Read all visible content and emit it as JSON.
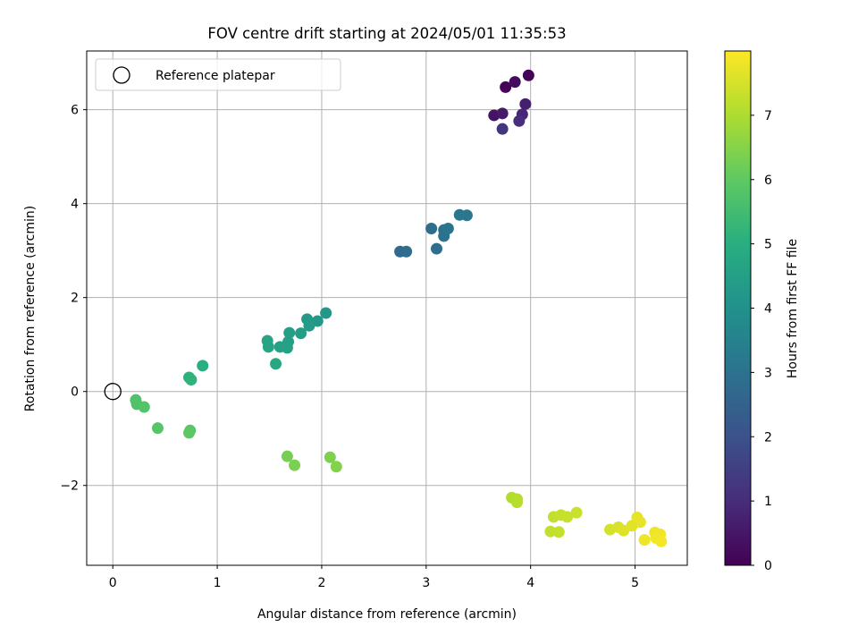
{
  "chart_data": {
    "type": "scatter",
    "title": "FOV centre drift starting at 2024/05/01 11:35:53",
    "xlabel": "Angular distance from reference (arcmin)",
    "ylabel": "Rotation from reference (arcmin)",
    "xlim": [
      -0.25,
      5.5
    ],
    "ylim": [
      -3.7,
      7.25
    ],
    "xticks": [
      0,
      1,
      2,
      3,
      4,
      5
    ],
    "yticks": [
      -2,
      0,
      2,
      4,
      6
    ],
    "xtick_labels": [
      "0",
      "1",
      "2",
      "3",
      "4",
      "5"
    ],
    "ytick_labels": [
      "−2",
      "0",
      "2",
      "4",
      "6"
    ],
    "grid": true,
    "legend": {
      "placement": "top-left",
      "entries": [
        "Reference platepar"
      ]
    },
    "reference_point": {
      "name": "Reference platepar",
      "x": 0,
      "y": 0
    },
    "colorbar": {
      "label": "Hours from first FF file",
      "colormap": "viridis",
      "range": [
        0,
        8.0
      ],
      "ticks": [
        0,
        1,
        2,
        3,
        4,
        5,
        6,
        7
      ]
    },
    "points": [
      {
        "x": 3.76,
        "y": 6.48,
        "c": 0.05
      },
      {
        "x": 3.98,
        "y": 6.73,
        "c": 0.1
      },
      {
        "x": 3.85,
        "y": 6.59,
        "c": 0.25
      },
      {
        "x": 3.65,
        "y": 5.88,
        "c": 0.4
      },
      {
        "x": 3.73,
        "y": 5.92,
        "c": 0.55
      },
      {
        "x": 3.95,
        "y": 6.12,
        "c": 0.7
      },
      {
        "x": 3.92,
        "y": 5.9,
        "c": 0.85
      },
      {
        "x": 3.89,
        "y": 5.76,
        "c": 1.0
      },
      {
        "x": 3.73,
        "y": 5.59,
        "c": 1.2
      },
      {
        "x": 2.75,
        "y": 2.98,
        "c": 2.75
      },
      {
        "x": 2.81,
        "y": 2.98,
        "c": 2.8
      },
      {
        "x": 3.05,
        "y": 3.47,
        "c": 2.85
      },
      {
        "x": 3.1,
        "y": 3.04,
        "c": 2.9
      },
      {
        "x": 3.17,
        "y": 3.44,
        "c": 2.95
      },
      {
        "x": 3.17,
        "y": 3.31,
        "c": 3.0
      },
      {
        "x": 3.21,
        "y": 3.47,
        "c": 3.05
      },
      {
        "x": 3.32,
        "y": 3.76,
        "c": 3.1
      },
      {
        "x": 3.39,
        "y": 3.75,
        "c": 3.15
      },
      {
        "x": 2.04,
        "y": 1.67,
        "c": 4.2
      },
      {
        "x": 1.96,
        "y": 1.5,
        "c": 4.25
      },
      {
        "x": 1.86,
        "y": 1.54,
        "c": 4.3
      },
      {
        "x": 1.88,
        "y": 1.4,
        "c": 4.35
      },
      {
        "x": 1.8,
        "y": 1.24,
        "c": 4.4
      },
      {
        "x": 1.69,
        "y": 1.25,
        "c": 4.45
      },
      {
        "x": 1.68,
        "y": 1.06,
        "c": 4.5
      },
      {
        "x": 1.67,
        "y": 0.93,
        "c": 4.55
      },
      {
        "x": 1.6,
        "y": 0.95,
        "c": 4.6
      },
      {
        "x": 1.48,
        "y": 1.08,
        "c": 4.65
      },
      {
        "x": 1.49,
        "y": 0.95,
        "c": 4.7
      },
      {
        "x": 1.56,
        "y": 0.59,
        "c": 4.8
      },
      {
        "x": 0.86,
        "y": 0.55,
        "c": 5.0
      },
      {
        "x": 0.73,
        "y": 0.3,
        "c": 5.1
      },
      {
        "x": 0.75,
        "y": 0.25,
        "c": 5.15
      },
      {
        "x": 0.22,
        "y": -0.18,
        "c": 5.7
      },
      {
        "x": 0.23,
        "y": -0.27,
        "c": 5.75
      },
      {
        "x": 0.3,
        "y": -0.33,
        "c": 5.8
      },
      {
        "x": 0.43,
        "y": -0.78,
        "c": 5.85
      },
      {
        "x": 0.74,
        "y": -0.83,
        "c": 5.9
      },
      {
        "x": 0.73,
        "y": -0.88,
        "c": 5.95
      },
      {
        "x": 1.67,
        "y": -1.38,
        "c": 6.3
      },
      {
        "x": 1.74,
        "y": -1.57,
        "c": 6.35
      },
      {
        "x": 2.08,
        "y": -1.4,
        "c": 6.4
      },
      {
        "x": 2.14,
        "y": -1.6,
        "c": 6.45
      },
      {
        "x": 3.82,
        "y": -2.26,
        "c": 7.05
      },
      {
        "x": 3.87,
        "y": -2.29,
        "c": 7.1
      },
      {
        "x": 3.87,
        "y": -2.36,
        "c": 7.12
      },
      {
        "x": 4.22,
        "y": -2.67,
        "c": 7.25
      },
      {
        "x": 4.29,
        "y": -2.63,
        "c": 7.3
      },
      {
        "x": 4.35,
        "y": -2.67,
        "c": 7.32
      },
      {
        "x": 4.44,
        "y": -2.58,
        "c": 7.35
      },
      {
        "x": 4.19,
        "y": -2.98,
        "c": 7.28
      },
      {
        "x": 4.27,
        "y": -2.99,
        "c": 7.3
      },
      {
        "x": 4.76,
        "y": -2.94,
        "c": 7.5
      },
      {
        "x": 4.84,
        "y": -2.89,
        "c": 7.55
      },
      {
        "x": 4.89,
        "y": -2.96,
        "c": 7.6
      },
      {
        "x": 4.97,
        "y": -2.86,
        "c": 7.65
      },
      {
        "x": 5.02,
        "y": -2.68,
        "c": 7.7
      },
      {
        "x": 5.05,
        "y": -2.78,
        "c": 7.72
      },
      {
        "x": 5.09,
        "y": -3.16,
        "c": 7.8
      },
      {
        "x": 5.19,
        "y": -3.0,
        "c": 7.82
      },
      {
        "x": 5.24,
        "y": -3.04,
        "c": 7.85
      },
      {
        "x": 5.2,
        "y": -3.12,
        "c": 7.88
      },
      {
        "x": 5.25,
        "y": -3.19,
        "c": 7.9
      }
    ]
  }
}
